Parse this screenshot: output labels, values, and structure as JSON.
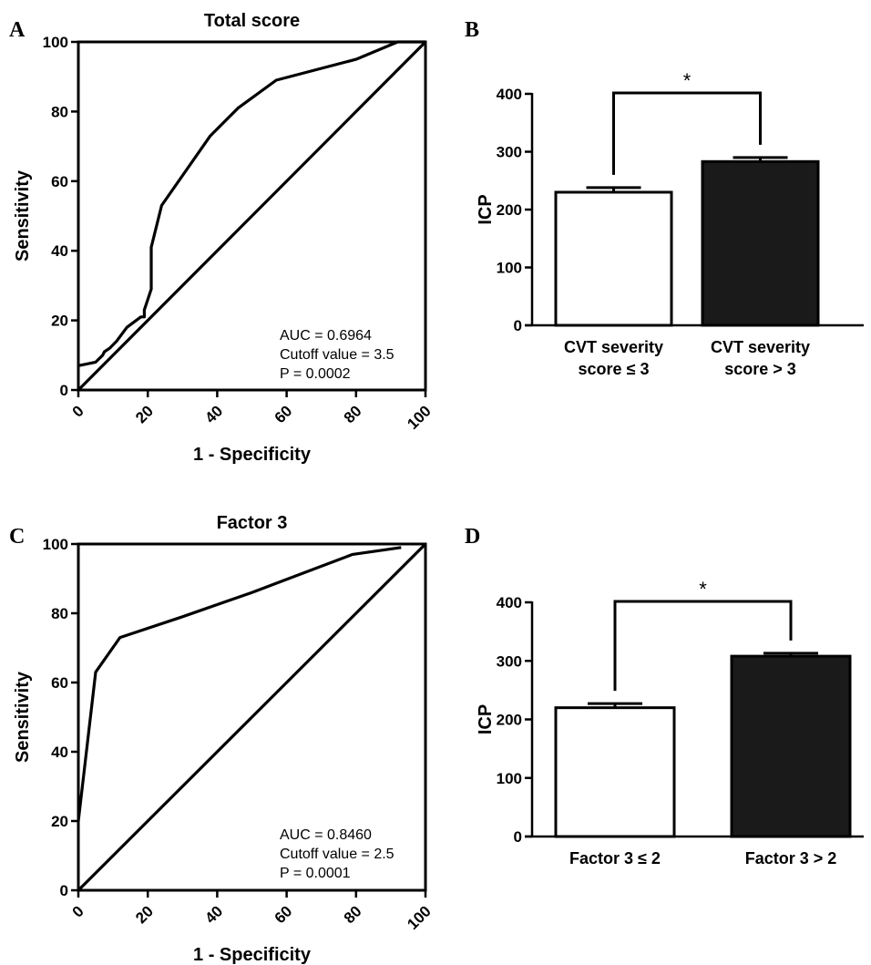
{
  "chart_data": [
    {
      "panel": "A",
      "type": "line",
      "title": "Total score",
      "xlabel": "1 - Specificity",
      "ylabel": "Sensitivity",
      "xlim": [
        0,
        100
      ],
      "ylim": [
        0,
        100
      ],
      "xticks": [
        "0",
        "20",
        "40",
        "60",
        "80",
        "100"
      ],
      "yticks": [
        "0",
        "20",
        "40",
        "60",
        "80",
        "100"
      ],
      "series": [
        {
          "x": [
            0,
            5,
            7,
            7.5,
            9,
            11,
            14,
            18,
            19,
            19,
            20,
            21,
            21,
            24,
            38,
            46,
            57,
            80,
            92,
            100
          ],
          "y": [
            7,
            8,
            10,
            11,
            12,
            14,
            18,
            21,
            21,
            23,
            26,
            29,
            41,
            53,
            73,
            81,
            89,
            95,
            100,
            100
          ]
        },
        {
          "x": [
            0,
            100
          ],
          "y": [
            0,
            100
          ]
        }
      ],
      "annotations": [
        "AUC = 0.6964",
        "Cutoff value = 3.5",
        "P = 0.0002"
      ]
    },
    {
      "panel": "B",
      "type": "bar",
      "ylabel": "ICP",
      "ylim": [
        0,
        400
      ],
      "yticks": [
        "0",
        "100",
        "200",
        "300",
        "400"
      ],
      "categories": [
        [
          "CVT severity",
          "score ≤ 3"
        ],
        [
          "CVT severity",
          "score > 3"
        ]
      ],
      "values": [
        230,
        283
      ],
      "errors": [
        8,
        7
      ],
      "fills": [
        "#ffffff",
        "#1a1a1a"
      ],
      "significance": "*"
    },
    {
      "panel": "C",
      "type": "line",
      "title": "Factor 3",
      "xlabel": "1 - Specificity",
      "ylabel": "Sensitivity",
      "xlim": [
        0,
        100
      ],
      "ylim": [
        0,
        100
      ],
      "xticks": [
        "0",
        "20",
        "40",
        "60",
        "80",
        "100"
      ],
      "yticks": [
        "0",
        "20",
        "40",
        "60",
        "80",
        "100"
      ],
      "series": [
        {
          "x": [
            0,
            5,
            12,
            30,
            50,
            79,
            93
          ],
          "y": [
            20,
            63,
            73,
            79,
            86,
            97,
            99
          ]
        },
        {
          "x": [
            0,
            100
          ],
          "y": [
            0,
            100
          ]
        }
      ],
      "annotations": [
        "AUC = 0.8460",
        "Cutoff value = 2.5",
        "P = 0.0001"
      ]
    },
    {
      "panel": "D",
      "type": "bar",
      "ylabel": "ICP",
      "ylim": [
        0,
        400
      ],
      "yticks": [
        "0",
        "100",
        "200",
        "300",
        "400"
      ],
      "categories": [
        [
          "Factor 3 ≤ 2"
        ],
        [
          "Factor 3 > 2"
        ]
      ],
      "values": [
        220,
        308
      ],
      "errors": [
        7,
        5
      ],
      "fills": [
        "#ffffff",
        "#1a1a1a"
      ],
      "significance": "*"
    }
  ]
}
